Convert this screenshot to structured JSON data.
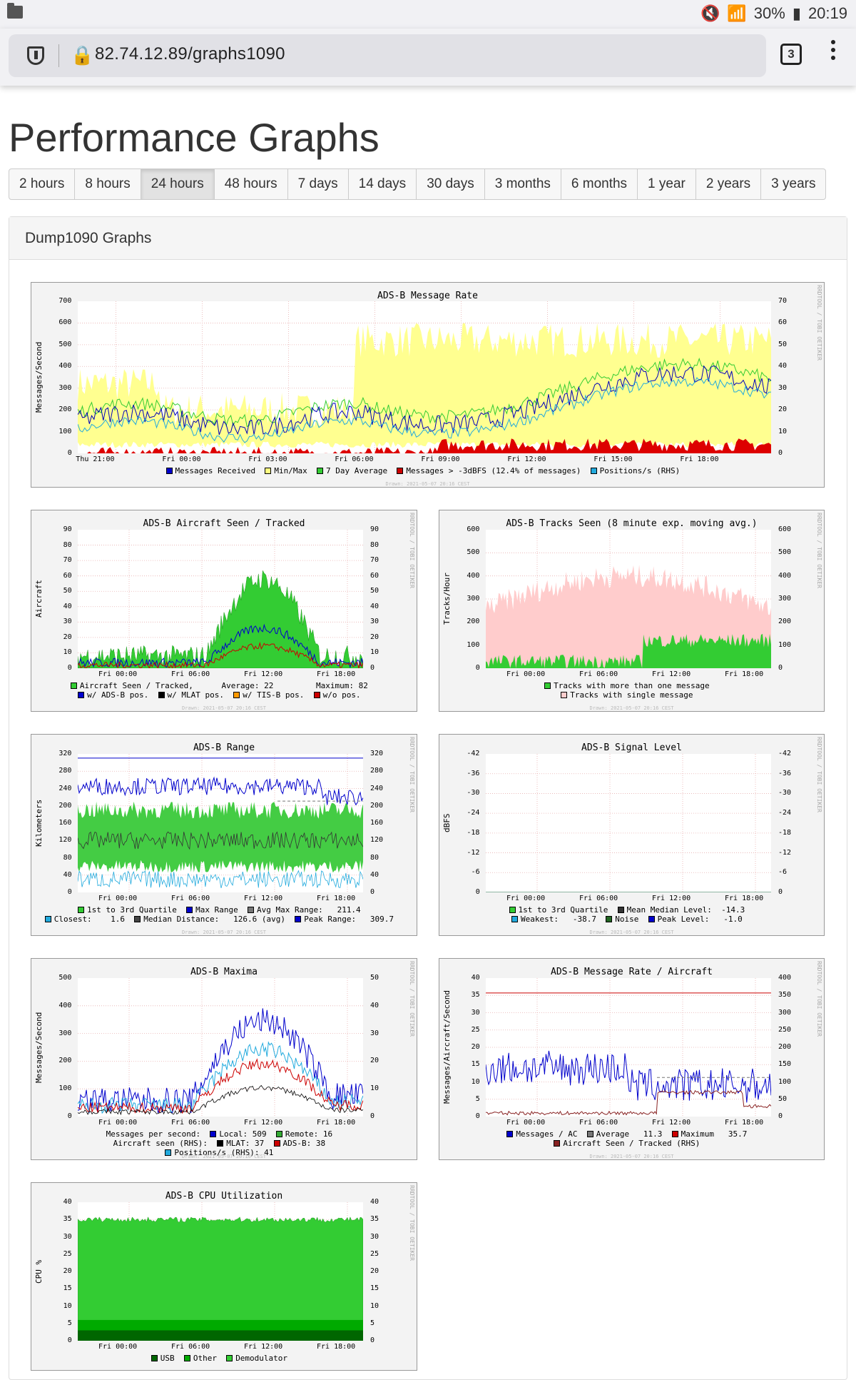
{
  "statusbar": {
    "battery": "30%",
    "time": "20:19"
  },
  "browser": {
    "url": "82.74.12.89/graphs1090",
    "tab_count": "3"
  },
  "page": {
    "title": "Performance Graphs"
  },
  "periods": [
    "2 hours",
    "8 hours",
    "24 hours",
    "48 hours",
    "7 days",
    "14 days",
    "30 days",
    "3 months",
    "6 months",
    "1 year",
    "2 years",
    "3 years"
  ],
  "active_period": "24 hours",
  "panel": {
    "title": "Dump1090 Graphs"
  },
  "side_label": "RRDTOOL / TOBI OETIKER",
  "drawn_label": "Drawn: 2021-05-07 20:16 CEST",
  "graphs": [
    {
      "title": "ADS-B Message Rate",
      "ylabel": "Messages/Second",
      "yticks": [
        "0",
        "100",
        "200",
        "300",
        "400",
        "500",
        "600",
        "700"
      ],
      "rticks": [
        "0",
        "10",
        "20",
        "30",
        "40",
        "50",
        "60",
        "70"
      ],
      "xticks": [
        "Thu 21:00",
        "Fri 00:00",
        "Fri 03:00",
        "Fri 06:00",
        "Fri 09:00",
        "Fri 12:00",
        "Fri 15:00",
        "Fri 18:00"
      ],
      "legend": [
        [
          {
            "c": "#0000cc",
            "t": "Messages Received"
          },
          {
            "c": "#ffff80",
            "t": "Min/Max"
          },
          {
            "c": "#33cc33",
            "t": "7 Day Average"
          },
          {
            "c": "#cc0000",
            "t": "Messages > -3dBFS (12.4% of messages)"
          },
          {
            "c": "#22aadd",
            "t": "Positions/s (RHS)"
          }
        ]
      ]
    },
    {
      "title": "ADS-B Aircraft Seen / Tracked",
      "ylabel": "Aircraft",
      "yticks": [
        "0",
        "10",
        "20",
        "30",
        "40",
        "50",
        "60",
        "70",
        "80",
        "90"
      ],
      "rticks": [
        "0",
        "10",
        "20",
        "30",
        "40",
        "50",
        "60",
        "70",
        "80",
        "90"
      ],
      "xticks": [
        "Fri 00:00",
        "Fri 06:00",
        "Fri 12:00",
        "Fri 18:00"
      ],
      "legend": [
        [
          {
            "c": "#33cc33",
            "t": "Aircraft Seen / Tracked,      Average: 22         Maximum: 82"
          }
        ],
        [
          {
            "c": "#0000cc",
            "t": "w/ ADS-B pos."
          },
          {
            "c": "#000000",
            "t": "w/ MLAT pos."
          },
          {
            "c": "#ff9900",
            "t": "w/ TIS-B pos."
          },
          {
            "c": "#cc0000",
            "t": "w/o pos."
          }
        ]
      ]
    },
    {
      "title": "ADS-B Tracks Seen (8 minute exp. moving avg.)",
      "ylabel": "Tracks/Hour",
      "yticks": [
        "0",
        "100",
        "200",
        "300",
        "400",
        "500",
        "600"
      ],
      "rticks": [
        "0",
        "100",
        "200",
        "300",
        "400",
        "500",
        "600"
      ],
      "xticks": [
        "Fri 00:00",
        "Fri 06:00",
        "Fri 12:00",
        "Fri 18:00"
      ],
      "legend": [
        [
          {
            "c": "#33cc33",
            "t": "Tracks with more than one message"
          }
        ],
        [
          {
            "c": "#ffcccc",
            "t": "Tracks with single message"
          }
        ]
      ]
    },
    {
      "title": "ADS-B Range",
      "ylabel": "Kilometers",
      "yticks": [
        "0",
        "40",
        "80",
        "120",
        "160",
        "200",
        "240",
        "280",
        "320"
      ],
      "rticks": [
        "0",
        "40",
        "80",
        "120",
        "160",
        "200",
        "240",
        "280",
        "320"
      ],
      "xticks": [
        "Fri 00:00",
        "Fri 06:00",
        "Fri 12:00",
        "Fri 18:00"
      ],
      "legend": [
        [
          {
            "c": "#33cc33",
            "t": "1st to 3rd Quartile"
          },
          {
            "c": "#0000cc",
            "t": "Max Range"
          },
          {
            "c": "#777777",
            "t": "Avg Max Range:   211.4"
          }
        ],
        [
          {
            "c": "#22aadd",
            "t": "Closest:    1.6"
          },
          {
            "c": "#444444",
            "t": "Median Distance:   126.6 (avg)"
          },
          {
            "c": "#0000cc",
            "t": "Peak Range:   309.7"
          }
        ]
      ]
    },
    {
      "title": "ADS-B Signal Level",
      "ylabel": "dBFS",
      "yticks": [
        "0",
        "-6",
        "-12",
        "-18",
        "-24",
        "-30",
        "-36",
        "-42"
      ],
      "rticks": [
        "0",
        "-6",
        "-12",
        "-18",
        "-24",
        "-30",
        "-36",
        "-42"
      ],
      "xticks": [
        "Fri 00:00",
        "Fri 06:00",
        "Fri 12:00",
        "Fri 18:00"
      ],
      "legend": [
        [
          {
            "c": "#33cc33",
            "t": "1st to 3rd Quartile"
          },
          {
            "c": "#333333",
            "t": "Mean Median Level:  -14.3"
          }
        ],
        [
          {
            "c": "#22aadd",
            "t": "Weakest:   -38.7"
          },
          {
            "c": "#226622",
            "t": "Noise"
          },
          {
            "c": "#0000cc",
            "t": "Peak Level:   -1.0"
          }
        ]
      ]
    },
    {
      "title": "ADS-B Maxima",
      "ylabel": "Messages/Second",
      "yticks": [
        "0",
        "100",
        "200",
        "300",
        "400",
        "500"
      ],
      "rticks": [
        "0",
        "10",
        "20",
        "30",
        "40",
        "50"
      ],
      "xticks": [
        "Fri 00:00",
        "Fri 06:00",
        "Fri 12:00",
        "Fri 18:00"
      ],
      "legend": [
        [
          {
            "c": "",
            "t": "Messages per second:"
          },
          {
            "c": "#0000cc",
            "t": "Local: 509"
          },
          {
            "c": "#33aa33",
            "t": "Remote: 16"
          }
        ],
        [
          {
            "c": "",
            "t": "Aircraft seen (RHS):"
          },
          {
            "c": "#000000",
            "t": "MLAT: 37"
          },
          {
            "c": "#cc0000",
            "t": "ADS-B: 38"
          }
        ],
        [
          {
            "c": "#22aadd",
            "t": "Positions/s (RHS): 41"
          }
        ]
      ]
    },
    {
      "title": "ADS-B Message Rate / Aircraft",
      "ylabel": "Messages/Aircraft/Second",
      "yticks": [
        "0",
        "5",
        "10",
        "15",
        "20",
        "25",
        "30",
        "35",
        "40"
      ],
      "rticks": [
        "0",
        "50",
        "100",
        "150",
        "200",
        "250",
        "300",
        "350",
        "400"
      ],
      "xticks": [
        "Fri 00:00",
        "Fri 06:00",
        "Fri 12:00",
        "Fri 18:00"
      ],
      "legend": [
        [
          {
            "c": "#0000cc",
            "t": "Messages / AC"
          },
          {
            "c": "#777777",
            "t": "Average   11.3"
          },
          {
            "c": "#cc0000",
            "t": "Maximum   35.7"
          }
        ],
        [
          {
            "c": "#882222",
            "t": "Aircraft Seen / Tracked (RHS)"
          }
        ]
      ]
    },
    {
      "title": "ADS-B CPU Utilization",
      "ylabel": "CPU %",
      "yticks": [
        "0",
        "5",
        "10",
        "15",
        "20",
        "25",
        "30",
        "35",
        "40"
      ],
      "rticks": [
        "0",
        "5",
        "10",
        "15",
        "20",
        "25",
        "30",
        "35",
        "40"
      ],
      "xticks": [
        "Fri 00:00",
        "Fri 06:00",
        "Fri 12:00",
        "Fri 18:00"
      ],
      "legend": [
        [
          {
            "c": "#006600",
            "t": "USB"
          },
          {
            "c": "#00aa00",
            "t": "Other"
          },
          {
            "c": "#33cc33",
            "t": "Demodulator"
          }
        ]
      ]
    }
  ]
}
